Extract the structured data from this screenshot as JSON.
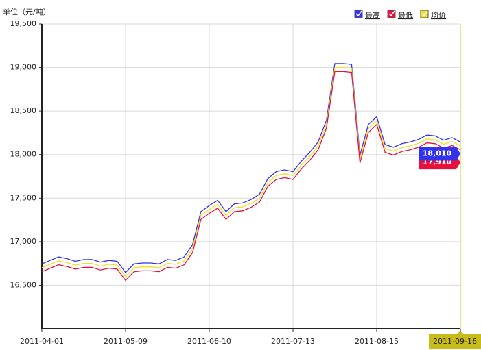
{
  "chart_data": {
    "type": "line",
    "unit_label": "单位（元/吨）",
    "categories": [
      "2011-04-01",
      null,
      null,
      null,
      null,
      null,
      null,
      null,
      null,
      null,
      "2011-05-09",
      null,
      null,
      null,
      null,
      null,
      null,
      null,
      null,
      null,
      "2011-06-10",
      null,
      null,
      null,
      null,
      null,
      null,
      null,
      null,
      null,
      "2011-07-13",
      null,
      null,
      null,
      null,
      null,
      null,
      null,
      null,
      null,
      "2011-08-15",
      null,
      null,
      null,
      null,
      null,
      null,
      null,
      null,
      null,
      "2011-09-16"
    ],
    "series": [
      {
        "name": "最高",
        "color": "#3333ee",
        "values": [
          16745,
          16785,
          16825,
          16805,
          16775,
          16795,
          16795,
          16765,
          16785,
          16775,
          16645,
          16745,
          16755,
          16755,
          16745,
          16795,
          16785,
          16825,
          16965,
          17345,
          17415,
          17475,
          17345,
          17435,
          17445,
          17485,
          17545,
          17725,
          17805,
          17825,
          17805,
          17925,
          18025,
          18145,
          18395,
          19045,
          19045,
          19035,
          17995,
          18345,
          18435,
          18115,
          18085,
          18125,
          18145,
          18175,
          18225,
          18215,
          18165,
          18195,
          18145
        ]
      },
      {
        "name": "最低",
        "color": "#e8103c",
        "values": [
          16655,
          16695,
          16735,
          16715,
          16685,
          16705,
          16705,
          16675,
          16695,
          16685,
          16555,
          16655,
          16665,
          16665,
          16655,
          16705,
          16695,
          16735,
          16875,
          17255,
          17325,
          17385,
          17255,
          17345,
          17355,
          17395,
          17455,
          17635,
          17715,
          17735,
          17715,
          17835,
          17935,
          18055,
          18305,
          18955,
          18955,
          18945,
          17905,
          18255,
          18345,
          18025,
          17995,
          18035,
          18055,
          18085,
          18135,
          18125,
          18075,
          18105,
          18055
        ]
      },
      {
        "name": "均价",
        "color": "#f0e020",
        "values": [
          16700,
          16740,
          16780,
          16760,
          16730,
          16750,
          16750,
          16720,
          16740,
          16730,
          16600,
          16700,
          16710,
          16710,
          16700,
          16750,
          16740,
          16780,
          16920,
          17300,
          17370,
          17430,
          17300,
          17390,
          17400,
          17440,
          17500,
          17680,
          17760,
          17780,
          17760,
          17880,
          17980,
          18100,
          18350,
          19000,
          19000,
          18990,
          17950,
          18300,
          18390,
          18070,
          18040,
          18080,
          18100,
          18130,
          18180,
          18170,
          18120,
          18150,
          18100
        ]
      }
    ],
    "tooltips": [
      {
        "value": 18010,
        "label": "18,010",
        "color": "#3333ee"
      },
      {
        "value": 17910,
        "label": "17,910",
        "color": "#e8103c"
      }
    ],
    "ylim": [
      16000,
      19500
    ],
    "yticks": [
      {
        "value": 16500,
        "label": "16,500"
      },
      {
        "value": 17000,
        "label": "17,000"
      },
      {
        "value": 17500,
        "label": "17,500"
      },
      {
        "value": 18000,
        "label": "18,000"
      },
      {
        "value": 18500,
        "label": "18,500"
      },
      {
        "value": 19000,
        "label": "19,000"
      },
      {
        "value": 19500,
        "label": "19,500"
      }
    ],
    "grid": true,
    "legend": "top-right"
  }
}
